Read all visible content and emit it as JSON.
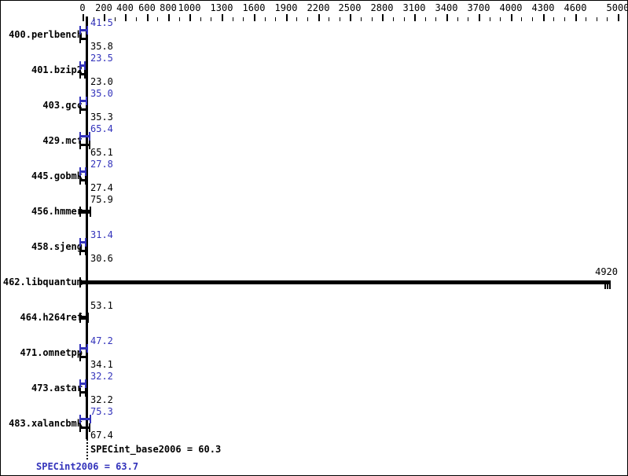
{
  "chart_data": {
    "type": "bar",
    "orientation": "horizontal",
    "title": "",
    "xlabel": "",
    "ylabel": "",
    "x_axis": {
      "major_ticks": [
        0,
        200,
        400,
        600,
        800,
        1000,
        1300,
        1600,
        1900,
        2200,
        2500,
        2800,
        3100,
        3400,
        3700,
        4000,
        4300,
        4600,
        5000
      ],
      "minor_step": 100,
      "min": 0,
      "max": 5100,
      "position": "top",
      "grid": false
    },
    "legend": "none",
    "series_names": [
      "peak",
      "base"
    ],
    "benchmarks": [
      {
        "name": "400.perlbench",
        "peak": "41.5",
        "base": "35.8"
      },
      {
        "name": "401.bzip2",
        "peak": "23.5",
        "base": "23.0"
      },
      {
        "name": "403.gcc",
        "peak": "35.0",
        "base": "35.3"
      },
      {
        "name": "429.mcf",
        "peak": "65.4",
        "base": "65.1"
      },
      {
        "name": "445.gobmk",
        "peak": "27.8",
        "base": "27.4"
      },
      {
        "name": "456.hmmer",
        "single": "75.9"
      },
      {
        "name": "458.sjeng",
        "peak": "31.4",
        "base": "30.6"
      },
      {
        "name": "462.libquantum",
        "single": "4920",
        "label_at_end": true
      },
      {
        "name": "464.h264ref",
        "single": "53.1"
      },
      {
        "name": "471.omnetpp",
        "peak": "47.2",
        "base": "34.1"
      },
      {
        "name": "473.astar",
        "peak": "32.2",
        "base": "32.2"
      },
      {
        "name": "483.xalancbmk",
        "peak": "75.3",
        "base": "67.4"
      }
    ],
    "summary": {
      "base_text": "SPECint_base2006 = 60.3",
      "peak_text": "SPECint2006 = 63.7",
      "base_value": 60.3,
      "peak_value": 63.7
    },
    "colors": {
      "peak_accent": "#3333bb",
      "base": "#000000",
      "background": "#ffffff"
    }
  }
}
